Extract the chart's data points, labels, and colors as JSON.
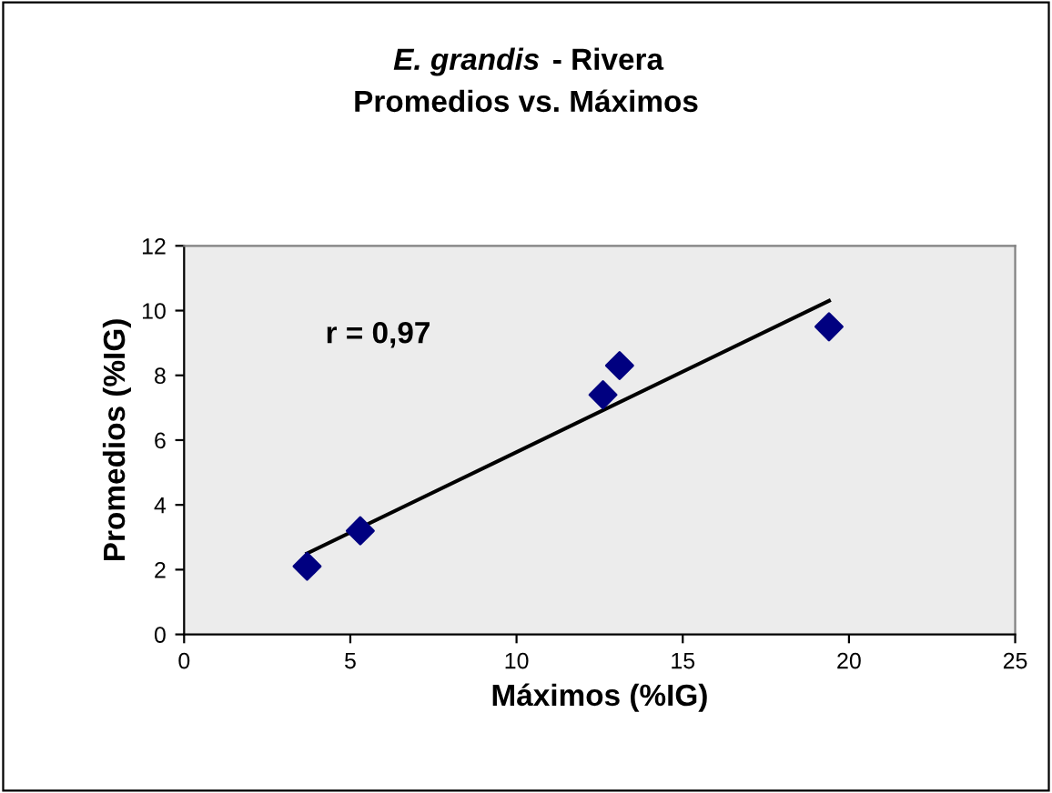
{
  "chart_data": {
    "type": "scatter",
    "title": "E. grandis - Rivera\nPromedios vs. Máximos",
    "xlabel": "Máximos (%IG)",
    "ylabel": "Promedios (%IG)",
    "x": [
      3.7,
      5.3,
      12.6,
      13.1,
      19.4
    ],
    "series": [
      {
        "color": "#000080",
        "marker": "diamond",
        "values": [
          2.1,
          3.2,
          7.4,
          8.3,
          9.5
        ]
      },
      {
        "type": "line",
        "color": "#000000",
        "x": [
          3.7,
          19.4
        ],
        "values": [
          2.5,
          10.3
        ]
      }
    ],
    "annotations": [
      "r = 0,97"
    ],
    "grid": false,
    "xlim": [
      0,
      25
    ],
    "xticks": [
      0,
      5,
      10,
      15,
      20,
      25
    ],
    "ylim": [
      0,
      12
    ],
    "yticks": [
      0,
      2,
      4,
      6,
      8,
      10,
      12
    ]
  }
}
